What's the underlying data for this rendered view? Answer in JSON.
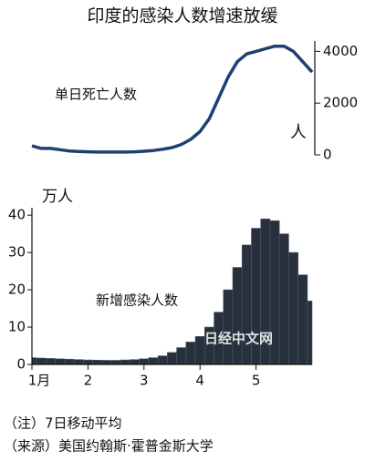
{
  "title": "印度的感染人数增速放缓",
  "chart_data": [
    {
      "type": "line",
      "label": "单日死亡人数",
      "unit": "人",
      "color": "#1f3f73",
      "values": [
        350,
        250,
        250,
        200,
        150,
        130,
        120,
        110,
        110,
        110,
        110,
        120,
        140,
        170,
        220,
        280,
        400,
        600,
        900,
        1400,
        2200,
        3000,
        3600,
        3900,
        4000,
        4100,
        4200,
        4200,
        4000,
        3600,
        3200
      ],
      "ylim": [
        0,
        4400
      ],
      "yticks": [
        0,
        2000,
        4000
      ]
    },
    {
      "type": "bar",
      "label": "新增感染人数",
      "unit": "万人",
      "color": "#27303c",
      "categories": [
        "1月",
        null,
        null,
        null,
        null,
        null,
        "2",
        null,
        null,
        null,
        null,
        null,
        "3",
        null,
        null,
        null,
        null,
        null,
        "4",
        null,
        null,
        null,
        null,
        null,
        "5",
        null,
        null,
        null,
        null,
        null,
        null
      ],
      "values": [
        1.8,
        1.7,
        1.6,
        1.5,
        1.4,
        1.3,
        1.2,
        1.15,
        1.1,
        1.1,
        1.2,
        1.3,
        1.5,
        1.8,
        2.3,
        3.2,
        4.5,
        6.0,
        7.5,
        10,
        14,
        20,
        26,
        32,
        36.5,
        39,
        38.5,
        35,
        30,
        24,
        17
      ],
      "ylim": [
        0,
        42
      ],
      "yticks": [
        0,
        10,
        20,
        30,
        40
      ]
    }
  ],
  "watermark": "日经中文网",
  "notes": [
    "（注）7日移动平均",
    "（来源）美国约翰斯·霍普金斯大学"
  ]
}
